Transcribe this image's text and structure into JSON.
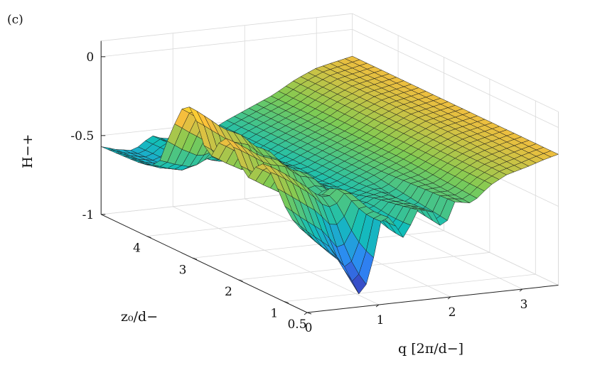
{
  "panel_label": "(c)",
  "chart_data": {
    "type": "surface",
    "title": "",
    "panel": "(c)",
    "xlabel": "q [2π/d−]",
    "ylabel": "z₀/d−",
    "zlabel": "H−+",
    "xlim": [
      0,
      3.5
    ],
    "ylim": [
      0.5,
      5
    ],
    "zlim": [
      -1,
      0.1
    ],
    "x_ticks": [
      0,
      1,
      2,
      3
    ],
    "x_tick_labels": [
      "0",
      "1",
      "2",
      "3"
    ],
    "y_ticks": [
      0.5,
      1,
      2,
      3,
      4
    ],
    "y_tick_labels": [
      "0.5",
      "1",
      "2",
      "3",
      "4"
    ],
    "z_ticks": [
      0,
      -0.5,
      -1
    ],
    "z_tick_labels": [
      "0",
      "-0.5",
      "-1"
    ],
    "colormap": [
      "#3e26a8",
      "#2e87f7",
      "#13beb8",
      "#7fcb53",
      "#fcbd3c",
      "#f9fb15"
    ],
    "grid": true,
    "profile_small_z0": {
      "q": [
        0,
        0.25,
        0.5,
        0.75,
        0.9,
        1.0,
        1.15,
        1.35,
        1.55,
        1.75,
        1.9,
        2.05,
        2.3,
        2.55,
        2.8,
        3.05,
        3.3,
        3.5
      ],
      "H": [
        -0.5,
        -0.62,
        -0.72,
        -0.95,
        -0.78,
        -0.48,
        -0.45,
        -0.6,
        -0.42,
        -0.45,
        -0.58,
        -0.4,
        -0.42,
        -0.32,
        -0.26,
        -0.24,
        -0.2,
        -0.17
      ]
    },
    "profile_large_z0": {
      "q": [
        0,
        0.2,
        0.45,
        0.7,
        0.9,
        1.1,
        1.3,
        1.5,
        1.7,
        1.9,
        2.1,
        2.4,
        2.7,
        3.0,
        3.5
      ],
      "H": [
        -0.5,
        -0.56,
        -0.6,
        -0.52,
        -0.57,
        -0.53,
        -0.58,
        -0.55,
        -0.5,
        -0.46,
        -0.42,
        -0.36,
        -0.28,
        -0.22,
        -0.17
      ]
    },
    "ridge_heights": [
      -0.05,
      -0.14,
      -0.19
    ],
    "floor_profile": {
      "z0": [
        0.5,
        1.0,
        1.5,
        2.0,
        2.5,
        3.0,
        3.5,
        4.0,
        4.5,
        5.0
      ],
      "H": [
        -0.7,
        -0.66,
        -0.62,
        -0.6,
        -0.6,
        -0.62,
        -0.64,
        -0.66,
        -0.68,
        -0.7
      ]
    }
  }
}
